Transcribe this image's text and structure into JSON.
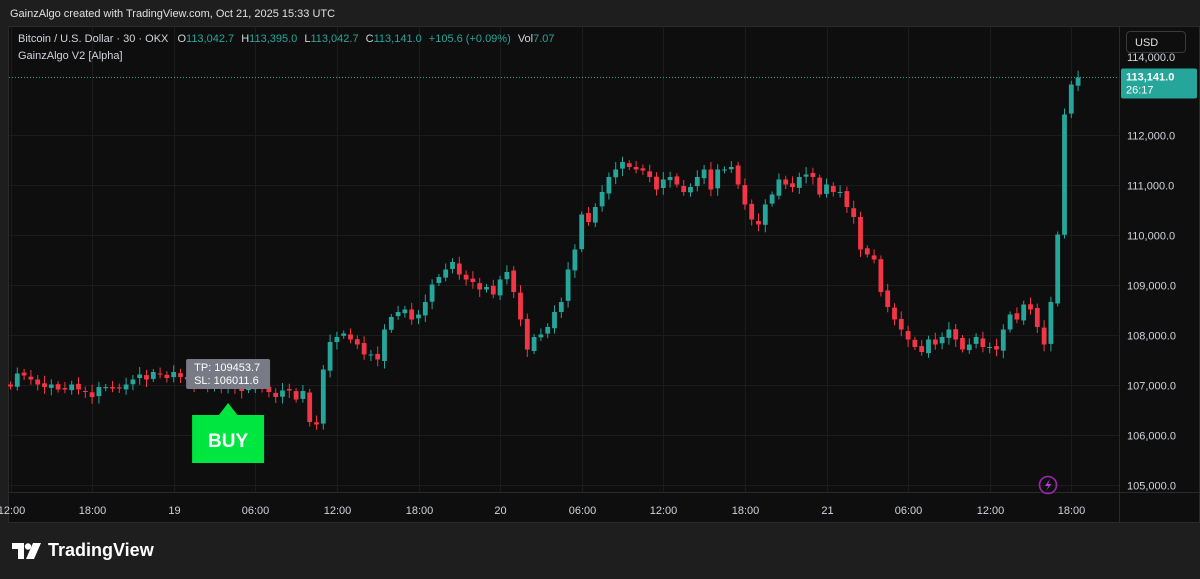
{
  "header": {
    "text": "GainzAlgo created with TradingView.com, Oct 21, 2025 15:33 UTC"
  },
  "legend": {
    "symbol": "Bitcoin / U.S. Dollar · 30 · OKX",
    "o_label": "O",
    "o_val": "113,042.7",
    "h_label": "H",
    "h_val": "113,395.0",
    "l_label": "L",
    "l_val": "113,042.7",
    "c_label": "C",
    "c_val": "113,141.0",
    "change": "+105.6 (+0.09%)",
    "vol_label": "Vol",
    "vol_val": "7.07",
    "indicator": "GainzAlgo V2 [Alpha]"
  },
  "currency_button": "USD",
  "brand": "TradingView",
  "colors": {
    "up": "#26a69a",
    "down": "#f23645",
    "buy": "#00e640",
    "tooltip": "#787b86",
    "alert": "#9c27b0"
  },
  "chart_data": {
    "type": "candlestick",
    "ylim": [
      104850,
      114150
    ],
    "y_ticks": [
      105000,
      106000,
      107000,
      108000,
      109000,
      110000,
      111000,
      112000
    ],
    "y_tick_labels": [
      "105,000.0",
      "106,000.0",
      "107,000.0",
      "108,000.0",
      "109,000.0",
      "110,000.0",
      "111,000.0",
      "112,000.0"
    ],
    "x_ticks": [
      {
        "label": "12:00",
        "index": 0
      },
      {
        "label": "18:00",
        "index": 12
      },
      {
        "label": "19",
        "index": 24
      },
      {
        "label": "06:00",
        "index": 36
      },
      {
        "label": "12:00",
        "index": 48
      },
      {
        "label": "18:00",
        "index": 60
      },
      {
        "label": "20",
        "index": 72
      },
      {
        "label": "06:00",
        "index": 84
      },
      {
        "label": "12:00",
        "index": 96
      },
      {
        "label": "18:00",
        "index": 108
      },
      {
        "label": "21",
        "index": 120
      },
      {
        "label": "06:00",
        "index": 132
      },
      {
        "label": "12:00",
        "index": 144
      },
      {
        "label": "18:00",
        "index": 156
      }
    ],
    "closes": [
      106960,
      107220,
      107180,
      107100,
      107000,
      106950,
      107000,
      106900,
      106900,
      107000,
      106900,
      106850,
      106750,
      106950,
      106950,
      106920,
      106920,
      107000,
      107100,
      107200,
      107100,
      107250,
      107200,
      107130,
      107250,
      107150,
      107100,
      107000,
      107000,
      106920,
      106980,
      106930,
      107000,
      106950,
      106870,
      106930,
      106980,
      106930,
      106850,
      106750,
      106880,
      106880,
      106700,
      106870,
      106250,
      106200,
      107300,
      107850,
      107950,
      108020,
      107900,
      107800,
      107600,
      107600,
      107500,
      108100,
      108350,
      108450,
      108500,
      108300,
      108400,
      108650,
      109000,
      109150,
      109300,
      109450,
      109200,
      109100,
      109050,
      108900,
      108950,
      108800,
      109100,
      109250,
      108850,
      108300,
      107700,
      107950,
      108000,
      108150,
      108450,
      108650,
      109300,
      109700,
      110400,
      110250,
      110550,
      110850,
      111150,
      111300,
      111450,
      111350,
      111300,
      111280,
      111150,
      110900,
      111100,
      111150,
      111000,
      110850,
      110950,
      111150,
      111300,
      110900,
      111300,
      111300,
      111350,
      111000,
      110600,
      110300,
      110200,
      110600,
      110800,
      111100,
      111000,
      110950,
      111150,
      111200,
      111150,
      110800,
      111000,
      110850,
      110850,
      110550,
      110350,
      109700,
      109600,
      109500,
      108850,
      108550,
      108300,
      108100,
      107900,
      107750,
      107650,
      107900,
      107800,
      107950,
      108100,
      107900,
      107700,
      107800,
      107950,
      107750,
      107750,
      107700,
      108100,
      108400,
      108300,
      108600,
      108500,
      108150,
      107800,
      108650,
      110000,
      112400,
      113000,
      113141
    ],
    "signal": {
      "label": "BUY",
      "candle_index": 32,
      "tp": "TP: 109453.7",
      "sl": "SL: 106011.6"
    },
    "last_price": {
      "price": "113,141.0",
      "timer": "26:17",
      "partial_tick": "114,000.0"
    }
  }
}
